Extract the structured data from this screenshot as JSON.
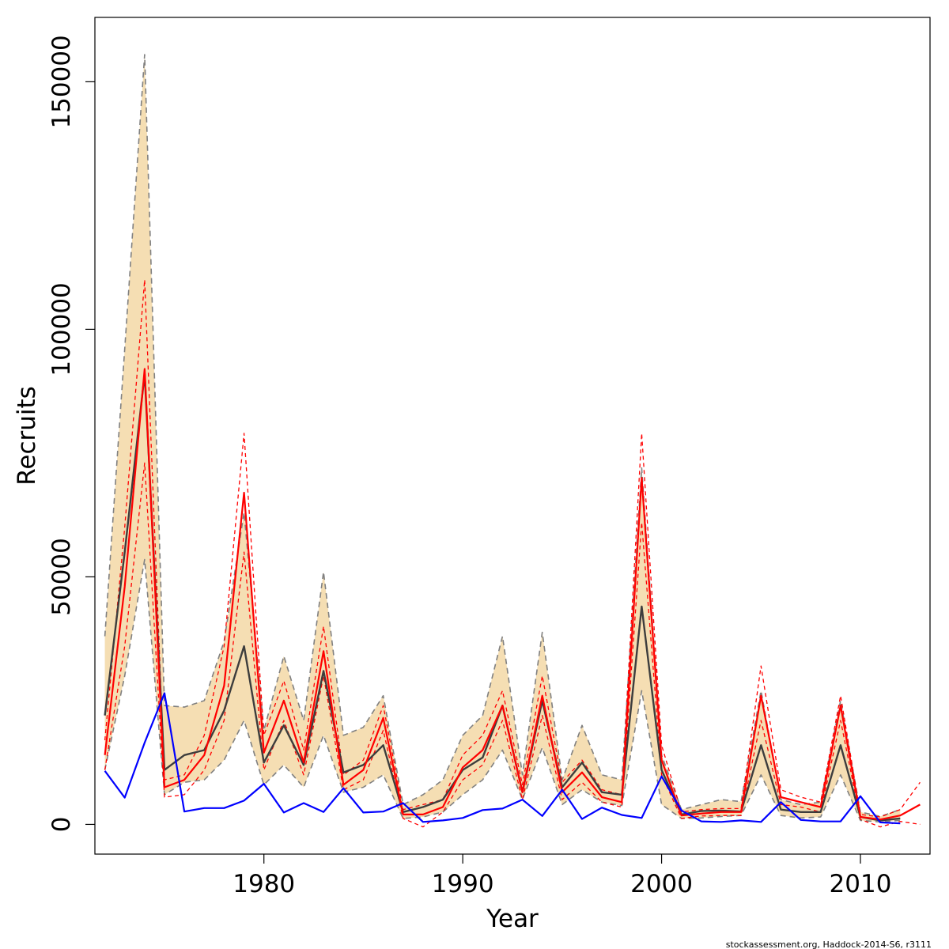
{
  "chart_data": {
    "type": "line",
    "title": "",
    "xlabel": "Year",
    "ylabel": "Recruits",
    "xlim": [
      1971.5,
      2013.5
    ],
    "ylim": [
      -6000,
      163000
    ],
    "x_ticks": [
      1980,
      1990,
      2000,
      2010
    ],
    "y_ticks": [
      0,
      50000,
      100000,
      150000
    ],
    "x_tick_labels": [
      "1980",
      "1990",
      "2000",
      "2010"
    ],
    "y_tick_labels": [
      "0",
      "50000",
      "100000",
      "150000"
    ],
    "grid": false,
    "legend": "none",
    "credit": "stockassessment.org, Haddock-2014-S6, r3111",
    "band": {
      "name": "confidence band",
      "color": "#f5deb3",
      "years": [
        1972,
        1973,
        1974,
        1975,
        1976,
        1977,
        1978,
        1979,
        1980,
        1981,
        1982,
        1983,
        1984,
        1985,
        1986,
        1987,
        1988,
        1989,
        1990,
        1991,
        1992,
        1993,
        1994,
        1995,
        1996,
        1997,
        1998,
        1999,
        2000,
        2001,
        2002,
        2003,
        2004,
        2005,
        2006,
        2007,
        2008,
        2009,
        2010,
        2011,
        2012
      ],
      "upper": [
        38000,
        96000,
        155500,
        24000,
        23700,
        25000,
        37000,
        63000,
        19000,
        34000,
        21000,
        51000,
        18000,
        19600,
        26000,
        4000,
        6000,
        9000,
        18000,
        22000,
        38000,
        10000,
        38800,
        9000,
        20000,
        10000,
        9000,
        72000,
        14000,
        3000,
        4000,
        5000,
        4600,
        27000,
        5000,
        4000,
        4500,
        25000,
        2500,
        1600,
        3000
      ],
      "lower": [
        11000,
        30000,
        53500,
        6000,
        8500,
        9000,
        13000,
        21000,
        8000,
        12000,
        7500,
        18000,
        6500,
        7500,
        10000,
        1200,
        1500,
        2500,
        6000,
        9000,
        15000,
        5000,
        15500,
        4000,
        7000,
        4500,
        3800,
        27000,
        4000,
        1200,
        1300,
        1600,
        1800,
        10000,
        1800,
        1300,
        1500,
        10000,
        800,
        500,
        800
      ]
    },
    "series": [
      {
        "name": "estimate",
        "color": "#3d3d3d",
        "style": "solid",
        "x": [
          1972,
          1973,
          1974,
          1975,
          1976,
          1977,
          1978,
          1979,
          1980,
          1981,
          1982,
          1983,
          1984,
          1985,
          1986,
          1987,
          1988,
          1989,
          1990,
          1991,
          1992,
          1993,
          1994,
          1995,
          1996,
          1997,
          1998,
          1999,
          2000,
          2001,
          2002,
          2003,
          2004,
          2005,
          2006,
          2007,
          2008,
          2009,
          2010,
          2011,
          2012
        ],
        "y": [
          22000,
          55000,
          91000,
          11000,
          14000,
          15000,
          23000,
          36000,
          12500,
          20000,
          12000,
          31000,
          10500,
          12000,
          16000,
          2500,
          3500,
          5000,
          11000,
          13500,
          24000,
          6500,
          25000,
          7500,
          12500,
          6500,
          6000,
          44000,
          11000,
          2000,
          2700,
          2800,
          2600,
          16000,
          3000,
          2500,
          2500,
          16000,
          1500,
          800,
          1200
        ]
      },
      {
        "name": "upper band edge",
        "color": "#808080",
        "style": "dashed",
        "x": [
          1972,
          1973,
          1974,
          1975,
          1976,
          1977,
          1978,
          1979,
          1980,
          1981,
          1982,
          1983,
          1984,
          1985,
          1986,
          1987,
          1988,
          1989,
          1990,
          1991,
          1992,
          1993,
          1994,
          1995,
          1996,
          1997,
          1998,
          1999,
          2000,
          2001,
          2002,
          2003,
          2004,
          2005,
          2006,
          2007,
          2008,
          2009,
          2010,
          2011,
          2012
        ],
        "y": [
          38000,
          96000,
          155500,
          24000,
          23700,
          25000,
          37000,
          63000,
          19000,
          34000,
          21000,
          51000,
          18000,
          19600,
          26000,
          4000,
          6000,
          9000,
          18000,
          22000,
          38000,
          10000,
          38800,
          9000,
          20000,
          10000,
          9000,
          72000,
          14000,
          3000,
          4000,
          5000,
          4600,
          27000,
          5000,
          4000,
          4500,
          25000,
          2500,
          1600,
          3000
        ]
      },
      {
        "name": "lower band edge",
        "color": "#808080",
        "style": "dashed",
        "x": [
          1972,
          1973,
          1974,
          1975,
          1976,
          1977,
          1978,
          1979,
          1980,
          1981,
          1982,
          1983,
          1984,
          1985,
          1986,
          1987,
          1988,
          1989,
          1990,
          1991,
          1992,
          1993,
          1994,
          1995,
          1996,
          1997,
          1998,
          1999,
          2000,
          2001,
          2002,
          2003,
          2004,
          2005,
          2006,
          2007,
          2008,
          2009,
          2010,
          2011,
          2012
        ],
        "y": [
          11000,
          30000,
          53500,
          6000,
          8500,
          9000,
          13000,
          21000,
          8000,
          12000,
          7500,
          18000,
          6500,
          7500,
          10000,
          1200,
          1500,
          2500,
          6000,
          9000,
          15000,
          5000,
          15500,
          4000,
          7000,
          4500,
          3800,
          27000,
          4000,
          1200,
          1300,
          1600,
          1800,
          10000,
          1800,
          1300,
          1500,
          10000,
          800,
          500,
          800
        ]
      },
      {
        "name": "red estimate",
        "color": "#ff0000",
        "style": "solid",
        "x": [
          1972,
          1973,
          1974,
          1975,
          1976,
          1977,
          1978,
          1979,
          1980,
          1981,
          1982,
          1983,
          1984,
          1985,
          1986,
          1987,
          1988,
          1989,
          1990,
          1991,
          1992,
          1993,
          1994,
          1995,
          1996,
          1997,
          1998,
          1999,
          2000,
          2001,
          2002,
          2003,
          2004,
          2005,
          2006,
          2007,
          2008,
          2009,
          2010,
          2011,
          2012,
          2013
        ],
        "y": [
          14000,
          48000,
          92000,
          7500,
          9000,
          14000,
          28000,
          67000,
          14500,
          25000,
          12500,
          35000,
          8000,
          11000,
          21500,
          2000,
          2000,
          3500,
          11500,
          15000,
          24000,
          6500,
          26000,
          6500,
          10500,
          5500,
          4500,
          70000,
          13000,
          1800,
          2200,
          2500,
          2500,
          26000,
          5500,
          4500,
          3500,
          24000,
          1500,
          1000,
          1800,
          4000
        ]
      },
      {
        "name": "red upper",
        "color": "#ff0000",
        "style": "dashed",
        "x": [
          1972,
          1973,
          1974,
          1975,
          1976,
          1977,
          1978,
          1979,
          1980,
          1981,
          1982,
          1983,
          1984,
          1985,
          1986,
          1987,
          1988,
          1989,
          1990,
          1991,
          1992,
          1993,
          1994,
          1995,
          1996,
          1997,
          1998,
          1999,
          2000,
          2001,
          2002,
          2003,
          2004,
          2005,
          2006,
          2007,
          2008,
          2009,
          2010,
          2011,
          2012,
          2013
        ],
        "y": [
          17000,
          60000,
          110000,
          9000,
          10000,
          18000,
          36000,
          79000,
          18000,
          29000,
          15000,
          40000,
          10000,
          13000,
          24000,
          3000,
          4000,
          5000,
          14000,
          18000,
          27000,
          8000,
          30000,
          8500,
          13000,
          7000,
          6000,
          79000,
          16000,
          2500,
          3000,
          3200,
          3200,
          32000,
          7000,
          5500,
          4500,
          26000,
          2000,
          1500,
          3000,
          8500
        ]
      },
      {
        "name": "red lower",
        "color": "#ff0000",
        "style": "dashed",
        "x": [
          1972,
          1973,
          1974,
          1975,
          1976,
          1977,
          1978,
          1979,
          1980,
          1981,
          1982,
          1983,
          1984,
          1985,
          1986,
          1987,
          1988,
          1989,
          1990,
          1991,
          1992,
          1993,
          1994,
          1995,
          1996,
          1997,
          1998,
          1999,
          2000,
          2001,
          2002,
          2003,
          2004,
          2005,
          2006,
          2007,
          2008,
          2009,
          2010,
          2011,
          2012,
          2013
        ],
        "y": [
          11000,
          36000,
          73000,
          5500,
          6000,
          11000,
          21000,
          55000,
          11000,
          21000,
          10000,
          30000,
          7000,
          9000,
          19000,
          1200,
          -500,
          2500,
          9000,
          12000,
          21000,
          5000,
          22000,
          5000,
          8500,
          4500,
          3500,
          61000,
          10000,
          1200,
          1700,
          1800,
          1800,
          21000,
          4000,
          3500,
          2500,
          21000,
          1000,
          -500,
          600,
          0
        ]
      },
      {
        "name": "blue series",
        "color": "#0000ff",
        "style": "solid",
        "x": [
          1972,
          1973,
          1974,
          1975,
          1976,
          1977,
          1978,
          1979,
          1980,
          1981,
          1982,
          1983,
          1984,
          1985,
          1986,
          1987,
          1988,
          1989,
          1990,
          1991,
          1992,
          1993,
          1994,
          1995,
          1996,
          1997,
          1998,
          1999,
          2000,
          2001,
          2002,
          2003,
          2004,
          2005,
          2006,
          2007,
          2008,
          2009,
          2010,
          2011,
          2012
        ],
        "y": [
          10800,
          5400,
          16500,
          26500,
          2600,
          3300,
          3300,
          4800,
          8200,
          2400,
          4300,
          2500,
          7300,
          2400,
          2600,
          4300,
          500,
          800,
          1300,
          2900,
          3200,
          5000,
          1700,
          7000,
          1100,
          3400,
          1900,
          1300,
          9700,
          2800,
          600,
          500,
          800,
          500,
          4500,
          900,
          600,
          600,
          5700,
          400,
          200
        ]
      }
    ]
  }
}
